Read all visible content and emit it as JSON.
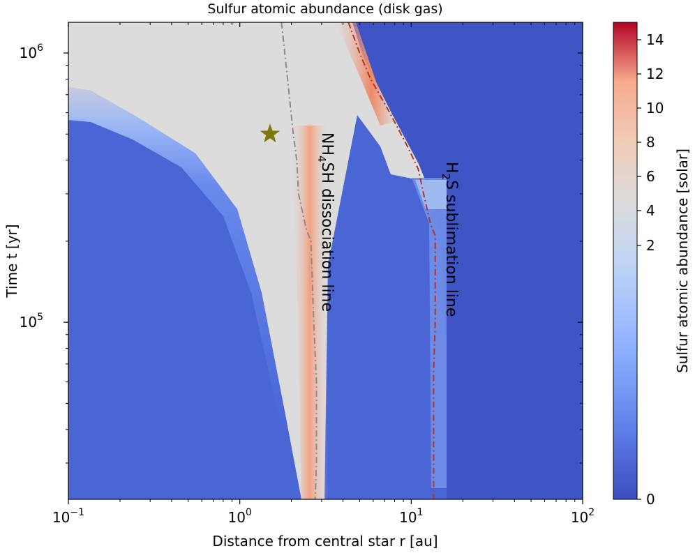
{
  "chart_data": {
    "type": "heatmap",
    "title": "Sulfur atomic abundance (disk gas)",
    "xlabel": "Distance from central star r [au]",
    "ylabel": "Time t [yr]",
    "xscale": "log",
    "yscale": "log",
    "xlim": [
      0.1,
      100
    ],
    "ylim": [
      22000,
      1300000
    ],
    "x_ticks": [
      {
        "value": 0.1,
        "base": "10",
        "exp": "−1"
      },
      {
        "value": 1,
        "base": "10",
        "exp": "0"
      },
      {
        "value": 10,
        "base": "10",
        "exp": "1"
      },
      {
        "value": 100,
        "base": "10",
        "exp": "2"
      }
    ],
    "y_ticks": [
      {
        "value": 100000,
        "base": "10",
        "exp": "5"
      },
      {
        "value": 1000000,
        "base": "10",
        "exp": "6"
      }
    ],
    "colorbar": {
      "label": "Sulfur atomic abundance [solar]",
      "colormap": "coolwarm",
      "range": [
        0,
        15
      ],
      "ticks": [
        "0",
        "2",
        "4",
        "6",
        "8",
        "10",
        "12",
        "14"
      ]
    },
    "lines": [
      {
        "name": "NH4SH dissociation line",
        "label_main": "NH",
        "label_sub": "4",
        "label_rest": "SH dissociation line",
        "color": "#8a8a8a",
        "style": "dashdot",
        "points": [
          [
            1.75,
            1300000
          ],
          [
            1.8,
            1100000
          ],
          [
            1.9,
            800000
          ],
          [
            2.05,
            500000
          ],
          [
            2.15,
            400000
          ],
          [
            2.2,
            300000
          ],
          [
            2.45,
            220000
          ],
          [
            2.6,
            200000
          ],
          [
            2.7,
            100000
          ],
          [
            2.8,
            60000
          ],
          [
            2.8,
            30000
          ],
          [
            2.75,
            22000
          ]
        ]
      },
      {
        "name": "H2S sublimation line",
        "label_main": "H",
        "label_sub": "2",
        "label_rest": "S sublimation line",
        "color": "#b83227",
        "style": "dashdot",
        "points": [
          [
            4.3,
            1300000
          ],
          [
            5,
            1000000
          ],
          [
            5.8,
            800000
          ],
          [
            7.5,
            600000
          ],
          [
            9.5,
            450000
          ],
          [
            11,
            370000
          ],
          [
            11.8,
            300000
          ],
          [
            13,
            230000
          ],
          [
            13.8,
            210000
          ],
          [
            13.8,
            100000
          ],
          [
            13.5,
            65000
          ],
          [
            13.5,
            30000
          ],
          [
            13.5,
            22000
          ]
        ]
      }
    ],
    "markers": [
      {
        "name": "star",
        "shape": "star",
        "color": "#7a7a0a",
        "x": 1.5,
        "y": 500000
      }
    ]
  }
}
